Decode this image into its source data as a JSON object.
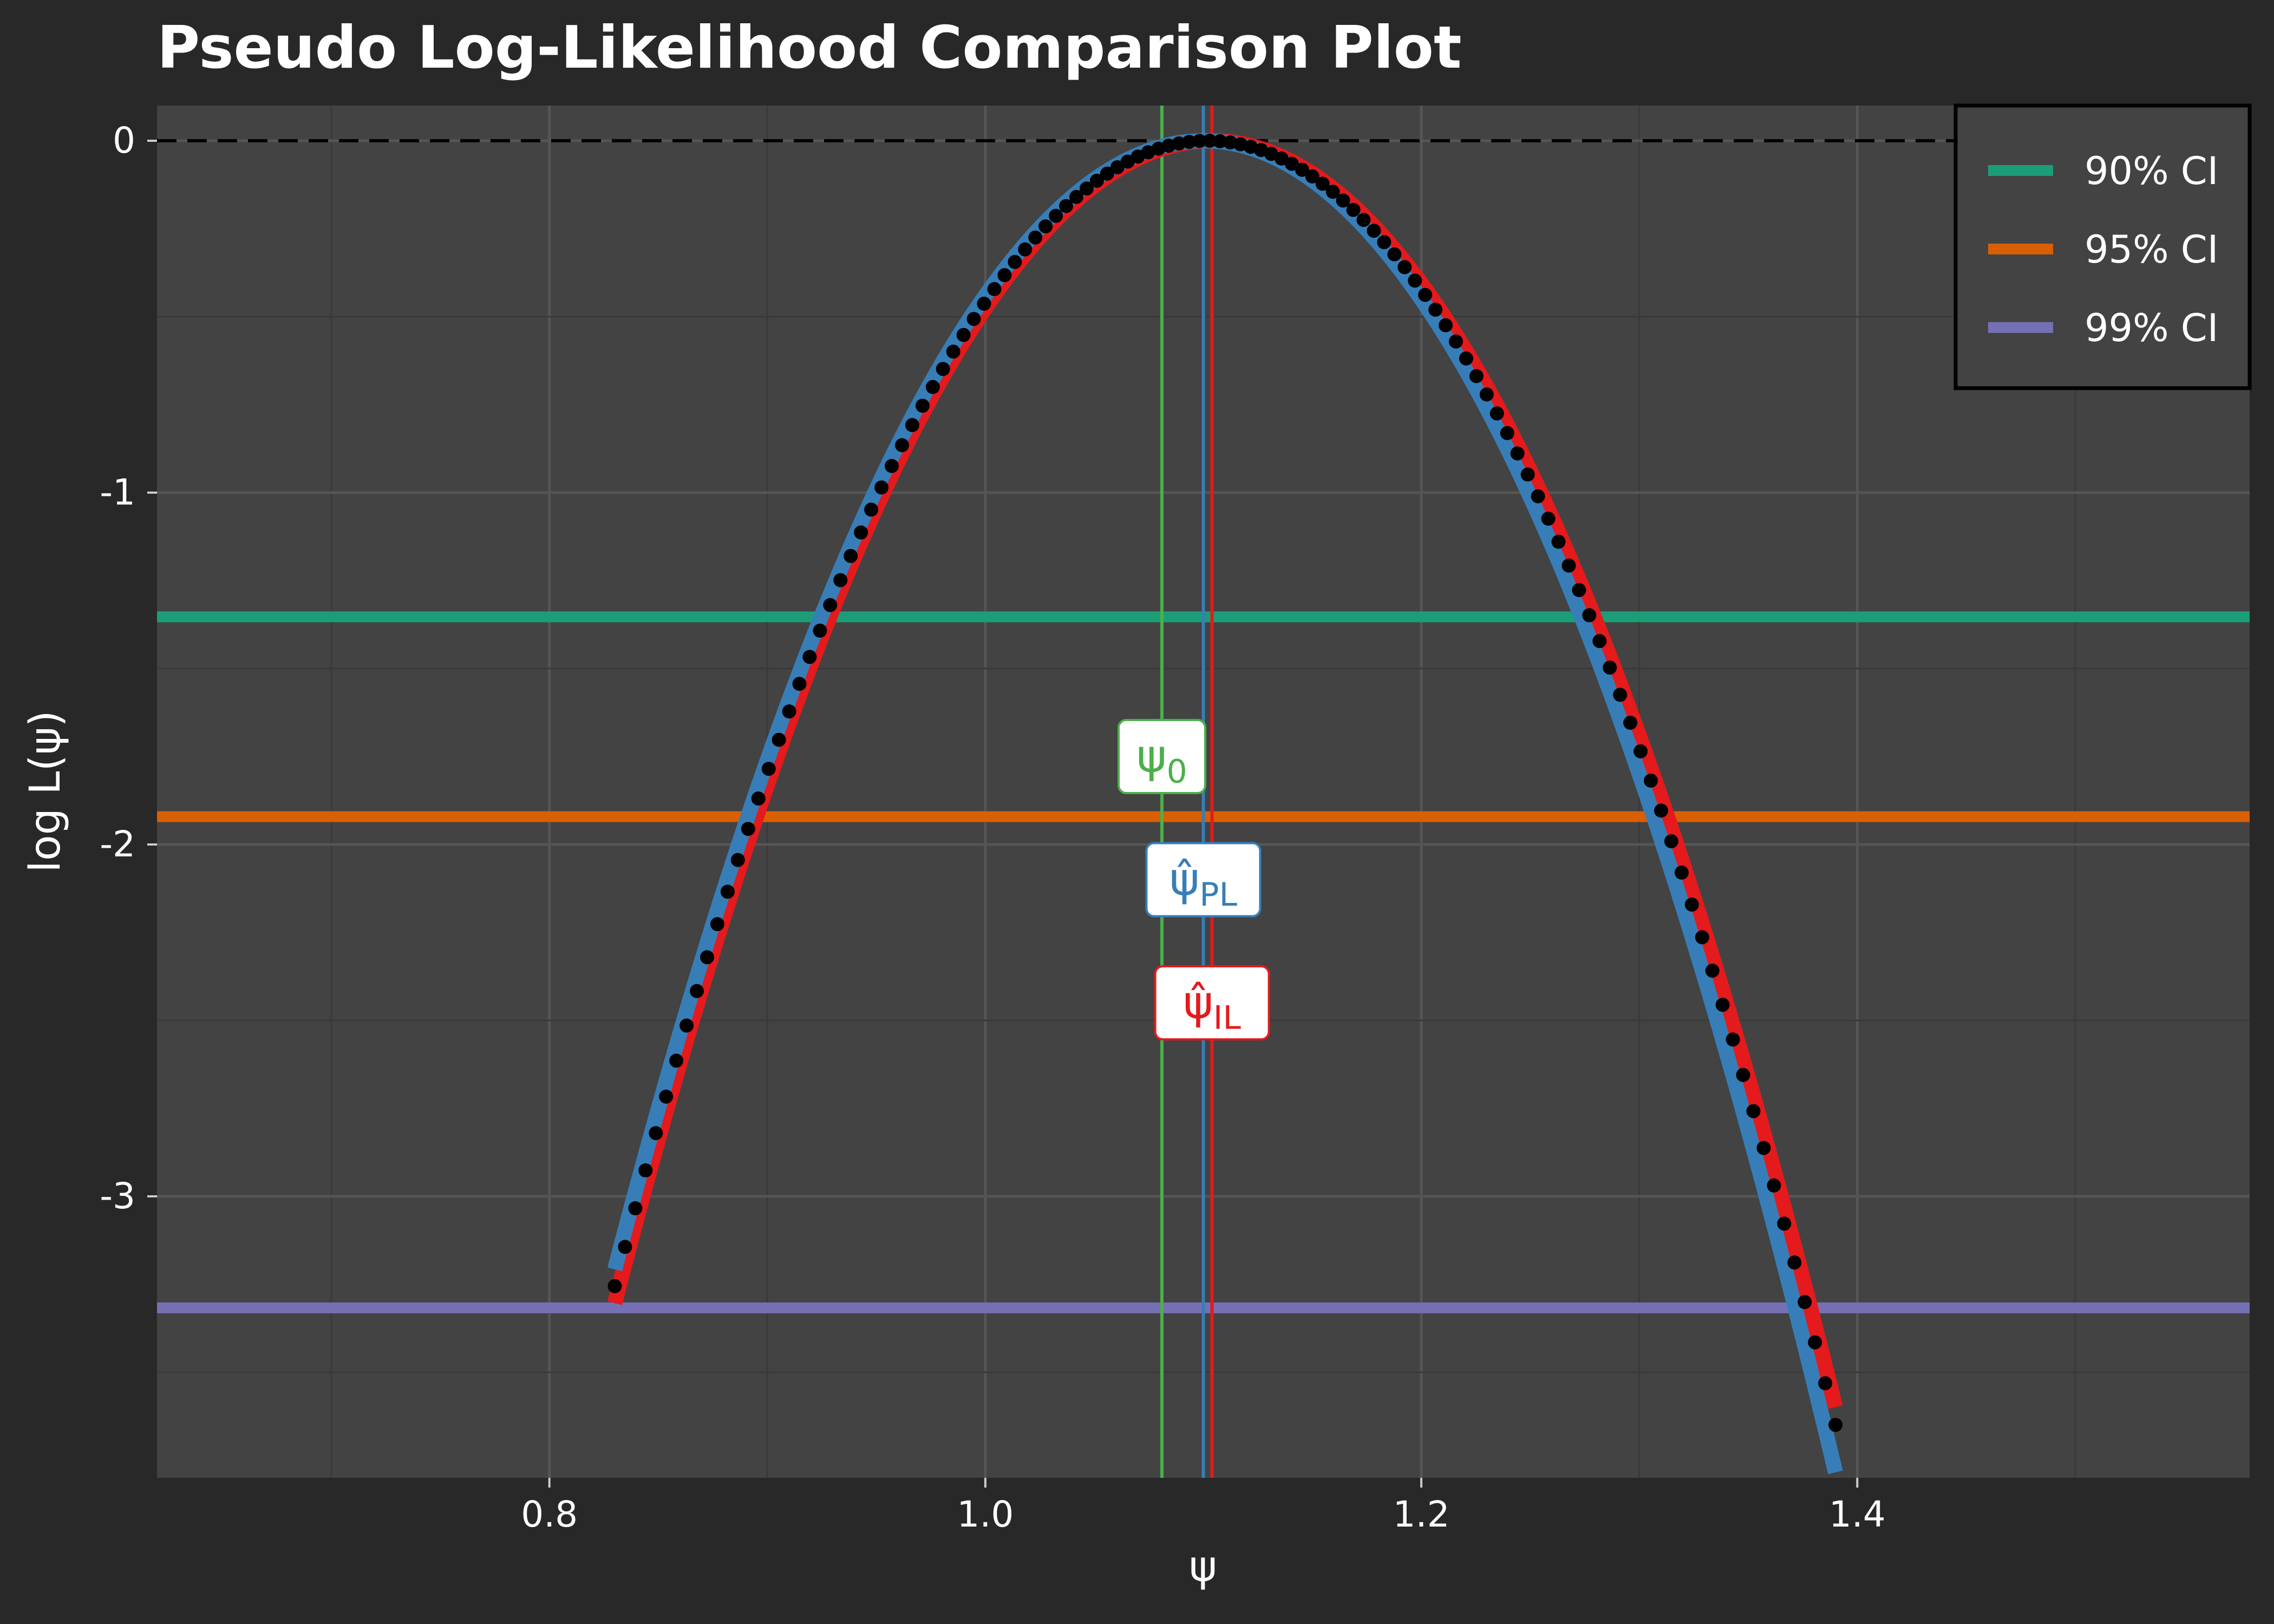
{
  "chart_data": {
    "type": "line",
    "title": "Pseudo Log-Likelihood Comparison Plot",
    "xlabel": "ψ",
    "ylabel": "log L(ψ)",
    "xlim": [
      0.62,
      1.58
    ],
    "ylim": [
      -3.8,
      0.1
    ],
    "x_ticks": [
      0.8,
      1.0,
      1.2,
      1.4
    ],
    "x_tick_labels": [
      "0.8",
      "1.0",
      "1.2",
      "1.4"
    ],
    "y_ticks": [
      0,
      -1,
      -2,
      -3
    ],
    "y_tick_labels": [
      "0",
      "-1",
      "-2",
      "-3"
    ],
    "grid": true,
    "reference_line": {
      "y": 0,
      "style": "dashed",
      "color": "#000000"
    },
    "legend": {
      "position": "top-right",
      "entries": [
        {
          "label": "90% CI",
          "color": "#1b9e77"
        },
        {
          "label": "95% CI",
          "color": "#d95f02"
        },
        {
          "label": "99% CI",
          "color": "#7570b3"
        }
      ]
    },
    "ci_lines": [
      {
        "label": "90% CI",
        "y": -1.353,
        "color": "#1b9e77"
      },
      {
        "label": "95% CI",
        "y": -1.921,
        "color": "#d95f02"
      },
      {
        "label": "99% CI",
        "y": -3.317,
        "color": "#7570b3"
      }
    ],
    "vertical_lines": [
      {
        "label": "ψ",
        "subscript": "0",
        "hat": false,
        "x": 1.081,
        "color": "#4daf4a",
        "label_y": -1.75
      },
      {
        "label": "ψ",
        "subscript": "PL",
        "hat": true,
        "x": 1.1,
        "color": "#377eb8",
        "label_y": -2.1
      },
      {
        "label": "ψ",
        "subscript": "IL",
        "hat": true,
        "x": 1.104,
        "color": "#e41a1c",
        "label_y": -2.45
      }
    ],
    "series": [
      {
        "kind": "curve",
        "color": "#e41a1c",
        "peak": 1.104,
        "a_left": 44.0,
        "a_right": 44.0,
        "x_start": 0.83,
        "x_end": 1.39
      },
      {
        "kind": "curve",
        "color": "#377eb8",
        "peak": 1.1,
        "a_left": 44.0,
        "a_right": 45.0,
        "x_start": 0.83,
        "x_end": 1.39
      },
      {
        "kind": "points",
        "color": "#000000",
        "peak": 1.102,
        "a": 44.0,
        "x_start": 0.83,
        "x_end": 1.39,
        "count": 120
      }
    ]
  }
}
